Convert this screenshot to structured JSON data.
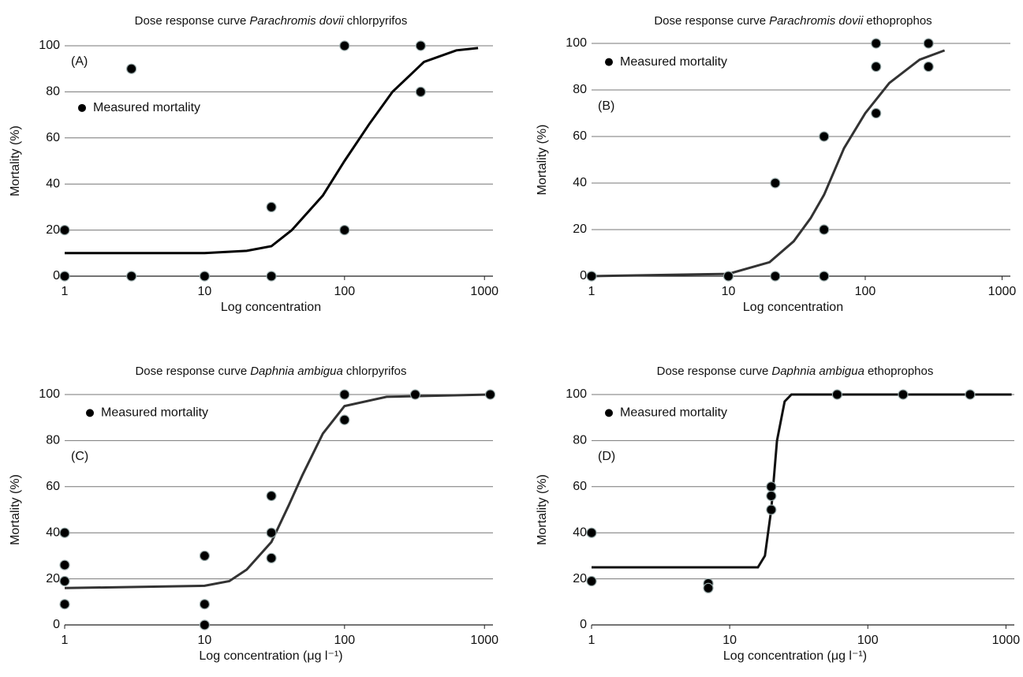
{
  "chart_data": [
    {
      "type": "scatter",
      "title": {
        "before": "Dose response curve",
        "italic": "Parachromis dovii",
        "after": "chlorpyrifos"
      },
      "annotation": "(A)",
      "xlabel": "Log concentration",
      "ylabel": "Mortality (%)",
      "log_x": true,
      "xlim": [
        1,
        1150
      ],
      "xticks": [
        1,
        10,
        100,
        1000
      ],
      "ylim": [
        0,
        100
      ],
      "yticks": [
        0,
        20,
        40,
        60,
        80,
        100
      ],
      "grid": true,
      "legend": "center left",
      "series": [
        {
          "name": "Measured mortality",
          "color": "#000000",
          "x": [
            1,
            1,
            3,
            3,
            10,
            30,
            30,
            100,
            100,
            350,
            350
          ],
          "values": [
            20,
            0,
            90,
            0,
            0,
            30,
            0,
            100,
            20,
            100,
            80
          ]
        }
      ],
      "fit": {
        "color": "#000000",
        "x": [
          1,
          3,
          10,
          20,
          30,
          42,
          70,
          100,
          150,
          220,
          370,
          630,
          900
        ],
        "values": [
          10,
          10,
          10,
          11,
          13,
          20,
          35,
          50,
          66,
          80,
          93,
          98,
          99
        ]
      }
    },
    {
      "type": "scatter",
      "title": {
        "before": "Dose response curve",
        "italic": "Parachromis dovii",
        "after": "ethoprophos"
      },
      "annotation": "(B)",
      "xlabel": "Log concentration",
      "ylabel": "Mortality (%)",
      "log_x": true,
      "xlim": [
        1,
        1150
      ],
      "xticks": [
        1,
        10,
        100,
        1000
      ],
      "ylim": [
        0,
        100
      ],
      "yticks": [
        0,
        20,
        40,
        60,
        80,
        100
      ],
      "grid": true,
      "legend": "upper left",
      "series": [
        {
          "name": "Measured mortality",
          "color": "#000000",
          "x": [
            1,
            10,
            22,
            22,
            50,
            50,
            50,
            120,
            120,
            120,
            290,
            290
          ],
          "values": [
            0,
            0,
            40,
            0,
            60,
            20,
            0,
            100,
            90,
            70,
            100,
            90
          ]
        }
      ],
      "fit": {
        "color": "#333333",
        "x": [
          1,
          10,
          20,
          30,
          40,
          50,
          70,
          100,
          150,
          250,
          380
        ],
        "values": [
          0,
          1,
          6,
          15,
          25,
          35,
          55,
          70,
          83,
          93,
          97
        ]
      }
    },
    {
      "type": "scatter",
      "title": {
        "before": "Dose response curve",
        "italic": "Daphnia ambigua",
        "after": "chlorpyrifos"
      },
      "annotation": "(C)",
      "xlabel": "Log concentration  (μg l⁻¹)",
      "ylabel": "Mortality (%)",
      "log_x": true,
      "xlim": [
        1,
        1150
      ],
      "xticks": [
        1,
        10,
        100,
        1000
      ],
      "ylim": [
        0,
        100
      ],
      "yticks": [
        0,
        20,
        40,
        60,
        80,
        100
      ],
      "grid": true,
      "legend": "upper left",
      "series": [
        {
          "name": "Measured mortality",
          "color": "#000000",
          "x": [
            1,
            1,
            1,
            1,
            10,
            10,
            10,
            30,
            30,
            30,
            100,
            100,
            320,
            1100
          ],
          "values": [
            40,
            26,
            19,
            9,
            30,
            9,
            0,
            56,
            40,
            29,
            100,
            89,
            100,
            100
          ]
        }
      ],
      "fit": {
        "color": "#333333",
        "x": [
          1,
          10,
          15,
          20,
          30,
          40,
          50,
          70,
          100,
          200,
          1100
        ],
        "values": [
          16,
          17,
          19,
          24,
          36,
          52,
          65,
          83,
          95,
          99,
          100
        ]
      }
    },
    {
      "type": "scatter",
      "title": {
        "before": "Dose response curve",
        "italic": "Daphnia ambigua",
        "after": "ethoprophos"
      },
      "annotation": "(D)",
      "xlabel": "Log concentration  (μg l⁻¹)",
      "ylabel": "Mortality (%)",
      "log_x": true,
      "xlim": [
        1,
        1150
      ],
      "xticks": [
        1,
        10,
        100,
        1000
      ],
      "ylim": [
        0,
        100
      ],
      "yticks": [
        0,
        20,
        40,
        60,
        80,
        100
      ],
      "grid": true,
      "legend": "upper left",
      "series": [
        {
          "name": "Measured mortality",
          "color": "#000000",
          "x": [
            1,
            1,
            7,
            7,
            20,
            20,
            20,
            60,
            180,
            550
          ],
          "values": [
            40,
            19,
            18,
            16,
            60,
            56,
            50,
            100,
            100,
            100
          ]
        }
      ],
      "fit": {
        "color": "#111111",
        "x": [
          1,
          16,
          18,
          20,
          22,
          25,
          28,
          1100
        ],
        "values": [
          25,
          25,
          30,
          50,
          80,
          97,
          100,
          100
        ]
      }
    }
  ]
}
